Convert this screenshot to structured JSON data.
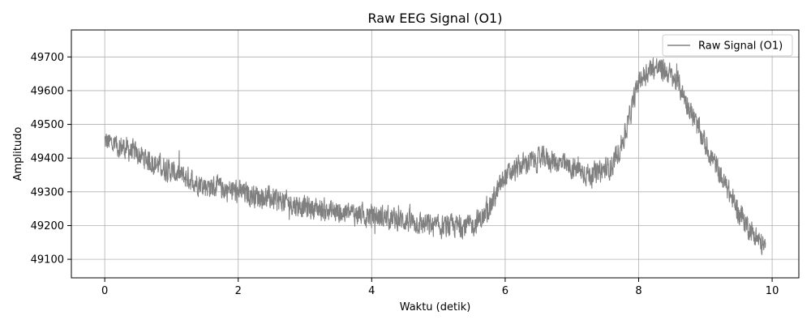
{
  "chart_data": {
    "type": "line",
    "title": "Raw EEG Signal (O1)",
    "xlabel": "Waktu (detik)",
    "ylabel": "Amplitudo",
    "xlim": [
      -0.5,
      10.4
    ],
    "ylim": [
      49045,
      49780
    ],
    "xticks": [
      0,
      2,
      4,
      6,
      8,
      10
    ],
    "yticks": [
      49100,
      49200,
      49300,
      49400,
      49500,
      49600,
      49700
    ],
    "grid": true,
    "legend_position": "top-right",
    "series": [
      {
        "name": "Raw Signal (O1)",
        "color": "#808080",
        "baseline": {
          "x": [
            0,
            0.3,
            0.6,
            1.0,
            1.5,
            2.0,
            2.5,
            3.0,
            3.5,
            4.0,
            4.5,
            5.0,
            5.5,
            5.7,
            6.0,
            6.3,
            6.6,
            7.0,
            7.3,
            7.6,
            7.8,
            8.0,
            8.2,
            8.4,
            8.6,
            8.8,
            9.0,
            9.2,
            9.5,
            9.7,
            9.9
          ],
          "y": [
            49450,
            49430,
            49400,
            49360,
            49320,
            49300,
            49280,
            49255,
            49240,
            49230,
            49215,
            49195,
            49200,
            49230,
            49345,
            49385,
            49400,
            49370,
            49350,
            49375,
            49470,
            49630,
            49670,
            49660,
            49620,
            49530,
            49440,
            49360,
            49240,
            49180,
            49130
          ]
        },
        "amplitude": 45
      }
    ]
  }
}
